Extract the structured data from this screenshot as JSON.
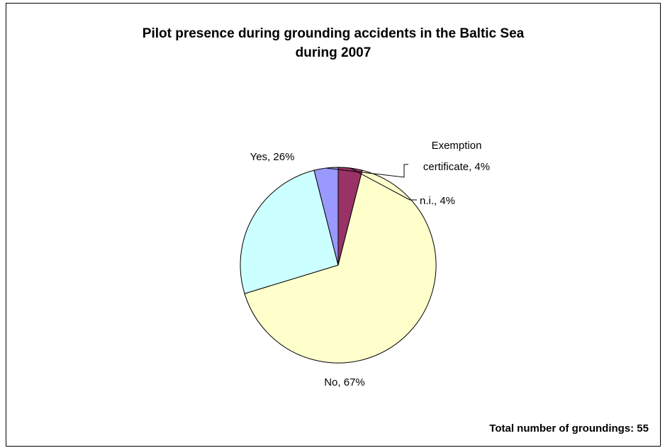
{
  "chart_data": {
    "type": "pie",
    "title": "Pilot presence during grounding accidents in the Baltic Sea during 2007",
    "title_lines": [
      "Pilot presence during grounding accidents in the Baltic Sea",
      "during 2007"
    ],
    "categories": [
      "n.i.",
      "No",
      "Yes",
      "Exemption certificate"
    ],
    "values": [
      4,
      67,
      26,
      4
    ],
    "data_labels": [
      "n.i., 4%",
      "No, 67%",
      "Yes, 26%",
      "Exemption certificate, 4%"
    ],
    "colors": [
      "#993366",
      "#FFFFCC",
      "#CCFFFF",
      "#9999FF"
    ],
    "legend": "none",
    "note": "Total number of groundings: 55"
  }
}
